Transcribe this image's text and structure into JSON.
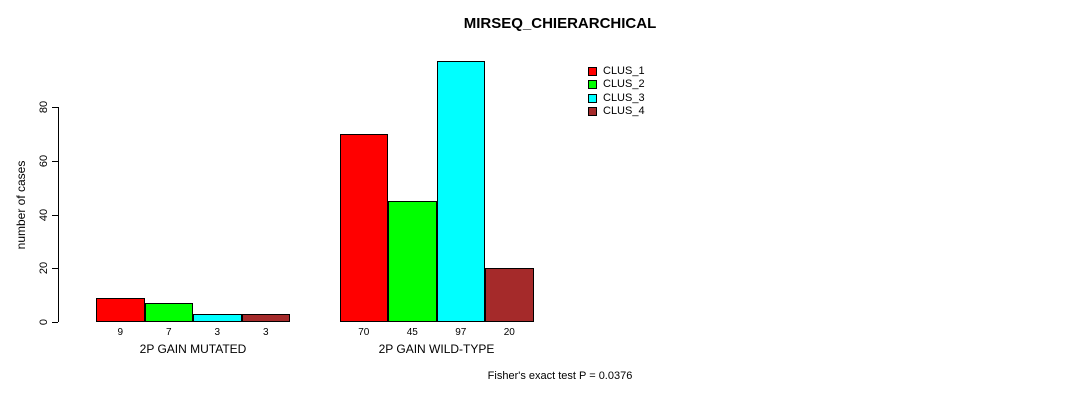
{
  "chart_data": {
    "type": "bar",
    "title": "MIRSEQ_CHIERARCHICAL",
    "ylabel": "number of cases",
    "xlabel": "",
    "ylim": [
      0,
      80
    ],
    "yticks": [
      0,
      20,
      40,
      60,
      80
    ],
    "grid": false,
    "legend_position": "top-right",
    "categories": [
      "2P GAIN MUTATED",
      "2P GAIN WILD-TYPE"
    ],
    "series": [
      {
        "name": "CLUS_1",
        "color": "#FF0000",
        "values": [
          9,
          70
        ]
      },
      {
        "name": "CLUS_2",
        "color": "#00FF00",
        "values": [
          7,
          45
        ]
      },
      {
        "name": "CLUS_3",
        "color": "#00FFFF",
        "values": [
          3,
          97
        ]
      },
      {
        "name": "CLUS_4",
        "color": "#A52A2A",
        "values": [
          3,
          20
        ]
      }
    ],
    "bar_value_labels": [
      [
        9,
        7,
        3,
        3
      ],
      [
        70,
        45,
        97,
        20
      ]
    ],
    "footnote": "Fisher's exact test P = 0.0376"
  }
}
